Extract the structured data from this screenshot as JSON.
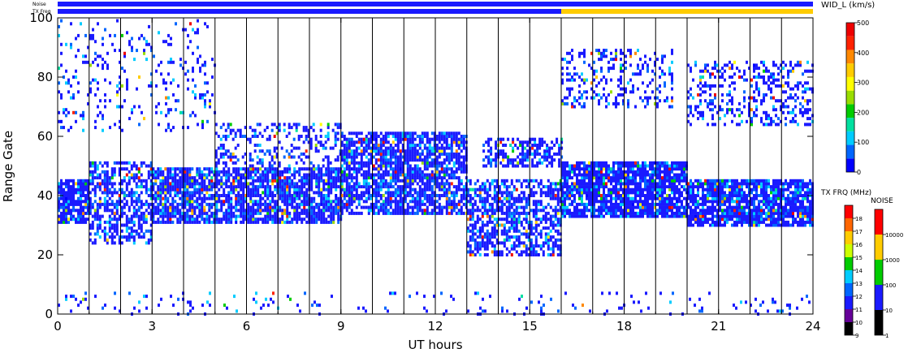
{
  "chart_data": {
    "type": "heatmap",
    "title": "",
    "xlabel": "UT hours",
    "ylabel": "Range Gate",
    "xlim": [
      0,
      24
    ],
    "ylim": [
      0,
      100
    ],
    "x_ticks": [
      "0",
      "3",
      "6",
      "9",
      "12",
      "15",
      "18",
      "21",
      "24"
    ],
    "y_ticks": [
      "0",
      "20",
      "40",
      "60",
      "80",
      "100"
    ],
    "top_strips": [
      {
        "label": "Noise",
        "segments": [
          [
            0,
            24,
            "#1a1aff"
          ]
        ]
      },
      {
        "label": "TX Freq",
        "segments": [
          [
            0,
            16,
            "#1a1aff"
          ],
          [
            16,
            24,
            "#ffcc00"
          ]
        ]
      }
    ],
    "scan_lines_hours": [
      1,
      2,
      3,
      4,
      5,
      6,
      7,
      8,
      9,
      10,
      11,
      12,
      13,
      14,
      15,
      16,
      17,
      18,
      19,
      20,
      21,
      22,
      23
    ],
    "echo_bands": [
      {
        "t0": 0.0,
        "t1": 1.0,
        "g0": 31,
        "g1": 46,
        "density": 0.85
      },
      {
        "t0": 1.0,
        "t1": 3.0,
        "g0": 24,
        "g1": 52,
        "density": 0.55
      },
      {
        "t0": 3.0,
        "t1": 9.0,
        "g0": 31,
        "g1": 50,
        "density": 0.8
      },
      {
        "t0": 5.0,
        "t1": 9.0,
        "g0": 50,
        "g1": 65,
        "density": 0.3
      },
      {
        "t0": 9.0,
        "t1": 13.0,
        "g0": 34,
        "g1": 62,
        "density": 0.75
      },
      {
        "t0": 13.0,
        "t1": 16.0,
        "g0": 20,
        "g1": 46,
        "density": 0.6
      },
      {
        "t0": 13.5,
        "t1": 16.0,
        "g0": 50,
        "g1": 60,
        "density": 0.5
      },
      {
        "t0": 16.0,
        "t1": 20.0,
        "g0": 33,
        "g1": 52,
        "density": 0.85
      },
      {
        "t0": 20.0,
        "t1": 24.0,
        "g0": 30,
        "g1": 46,
        "density": 0.85
      },
      {
        "t0": 16.0,
        "t1": 19.5,
        "g0": 70,
        "g1": 90,
        "density": 0.25
      },
      {
        "t0": 20.0,
        "t1": 24.0,
        "g0": 64,
        "g1": 86,
        "density": 0.3
      },
      {
        "t0": 0.0,
        "t1": 5.0,
        "g0": 62,
        "g1": 100,
        "density": 0.12
      },
      {
        "t0": 0.0,
        "t1": 24.0,
        "g0": 0,
        "g1": 8,
        "density": 0.06
      }
    ],
    "colorbars": [
      {
        "title": "WID_L (km/s)",
        "ticks": [
          "0",
          "100",
          "200",
          "300",
          "400",
          "500"
        ],
        "stops": [
          "#0000ff",
          "#0066ff",
          "#00ccff",
          "#00e0a0",
          "#00cc00",
          "#99dd00",
          "#ffff00",
          "#ffcc00",
          "#ff8800",
          "#ff2200",
          "#ee0000"
        ]
      },
      {
        "title": "TX FRQ (MHz)",
        "ticks": [
          "9",
          "10",
          "11",
          "12",
          "13",
          "14",
          "15",
          "16",
          "17",
          "18"
        ],
        "stops": [
          "#000000",
          "#660099",
          "#1a1aff",
          "#0066ff",
          "#00ccff",
          "#00cc00",
          "#ccff00",
          "#ffcc00",
          "#ff6600",
          "#ff0000"
        ]
      },
      {
        "title": "NOISE",
        "ticks": [
          "1",
          "10",
          "100",
          "1000",
          "10000"
        ],
        "stops": [
          "#000000",
          "#1a1aff",
          "#00cc00",
          "#ffcc00",
          "#ff0000"
        ]
      }
    ],
    "strip_labels": {
      "noise": "Noise",
      "txfreq": "TX Freq"
    }
  }
}
